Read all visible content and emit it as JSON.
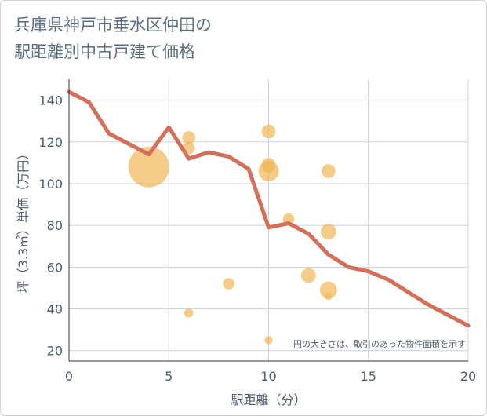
{
  "title": {
    "line1": "兵庫県神戸市垂水区仲田の",
    "line2": "駅距離別中古戸建て価格"
  },
  "chart_data": {
    "type": "scatter",
    "title": "兵庫県神戸市垂水区仲田の駅距離別中古戸建て価格",
    "xlabel": "駅距離（分）",
    "ylabel": "坪（3.3㎡）単価（万円）",
    "xlim": [
      0,
      20
    ],
    "ylim": [
      15,
      150
    ],
    "xticks": [
      0,
      5,
      10,
      15,
      20
    ],
    "yticks": [
      20,
      40,
      60,
      80,
      100,
      120,
      140
    ],
    "grid": true,
    "note": "円の大きさは、取引のあった物件面積を示す",
    "colors": {
      "bubble": "#f0b85a",
      "line": "#d4705a",
      "grid": "#c8d4e0"
    },
    "series": [
      {
        "type": "bubble",
        "points": [
          {
            "x": 4,
            "y": 108,
            "size": 1.0
          },
          {
            "x": 6,
            "y": 122,
            "size": 0.32
          },
          {
            "x": 6,
            "y": 117,
            "size": 0.3
          },
          {
            "x": 6,
            "y": 38,
            "size": 0.22
          },
          {
            "x": 8,
            "y": 52,
            "size": 0.28
          },
          {
            "x": 10,
            "y": 125,
            "size": 0.34
          },
          {
            "x": 10,
            "y": 109,
            "size": 0.34
          },
          {
            "x": 10,
            "y": 106,
            "size": 0.5
          },
          {
            "x": 10,
            "y": 108,
            "size": 0.3
          },
          {
            "x": 10,
            "y": 25,
            "size": 0.2
          },
          {
            "x": 11,
            "y": 83,
            "size": 0.28
          },
          {
            "x": 12,
            "y": 56,
            "size": 0.36
          },
          {
            "x": 13,
            "y": 106,
            "size": 0.34
          },
          {
            "x": 13,
            "y": 77,
            "size": 0.38
          },
          {
            "x": 13,
            "y": 49,
            "size": 0.42
          },
          {
            "x": 13,
            "y": 46,
            "size": 0.18
          }
        ]
      },
      {
        "type": "line",
        "x": [
          0,
          1,
          2,
          3,
          4,
          5,
          6,
          7,
          8,
          9,
          10,
          11,
          12,
          13,
          14,
          15,
          16,
          17,
          18,
          19,
          20
        ],
        "values": [
          144,
          139,
          124,
          119,
          114,
          127,
          112,
          115,
          113,
          107,
          79,
          81,
          76,
          66,
          60,
          58,
          54,
          48,
          42,
          37,
          32
        ]
      }
    ]
  }
}
